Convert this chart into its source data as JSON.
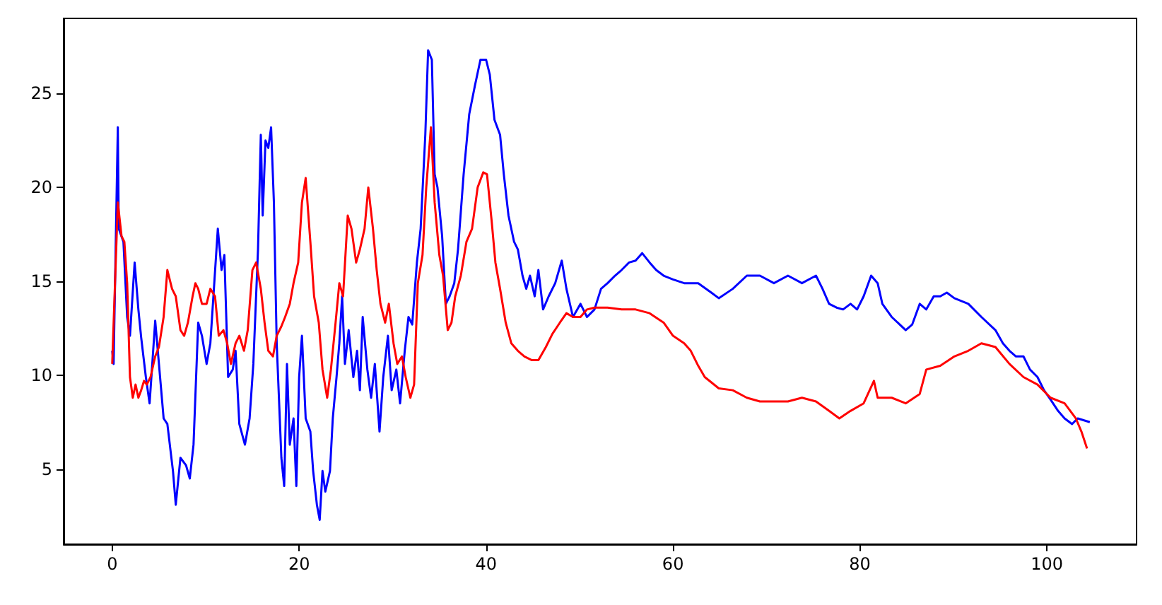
{
  "chart_data": {
    "type": "line",
    "xlim": [
      -5.2,
      109.6
    ],
    "ylim": [
      1.0,
      29.0
    ],
    "xticks": [
      0,
      20,
      40,
      60,
      80,
      100
    ],
    "yticks": [
      5,
      10,
      15,
      20,
      25
    ],
    "grid": false,
    "marker": "none",
    "line_style": "solid",
    "series": [
      {
        "color": "#0000ff",
        "x": [
          0,
          0.15,
          0.6,
          0.7,
          1.2,
          1.6,
          1.9,
          2.4,
          2.8,
          3.1,
          3.6,
          4.0,
          4.6,
          5.0,
          5.5,
          5.9,
          6.5,
          6.8,
          7.3,
          7.9,
          8.3,
          8.7,
          9.2,
          9.6,
          10.1,
          10.5,
          11.3,
          11.7,
          12.0,
          12.4,
          12.9,
          13.2,
          13.6,
          14.2,
          14.7,
          15.1,
          15.6,
          15.9,
          16.1,
          16.4,
          16.7,
          17.0,
          17.3,
          17.6,
          18.1,
          18.4,
          18.7,
          19.0,
          19.4,
          19.7,
          20.0,
          20.3,
          20.7,
          21.2,
          21.5,
          21.9,
          22.2,
          22.5,
          22.8,
          23.3,
          23.6,
          24.0,
          24.3,
          24.6,
          24.9,
          25.3,
          25.8,
          26.2,
          26.5,
          26.8,
          27.3,
          27.7,
          28.1,
          28.6,
          29.0,
          29.5,
          29.9,
          30.4,
          30.8,
          31.3,
          31.7,
          32.1,
          32.6,
          33.0,
          33.5,
          33.8,
          34.2,
          34.5,
          34.8,
          35.3,
          35.7,
          36.1,
          36.6,
          37.0,
          37.6,
          38.2,
          38.8,
          39.4,
          40.0,
          40.4,
          40.9,
          41.5,
          41.9,
          42.4,
          43.0,
          43.4,
          43.9,
          44.3,
          44.7,
          45.2,
          45.6,
          46.1,
          46.7,
          47.4,
          48.1,
          48.6,
          49.3,
          50.1,
          50.8,
          51.6,
          52.3,
          53.0,
          53.8,
          54.5,
          55.3,
          56.0,
          56.7,
          57.5,
          58.2,
          59.0,
          60,
          61.2,
          62.7,
          64.1,
          64.9,
          66.4,
          67.9,
          69.3,
          70.8,
          72.3,
          73.8,
          75.3,
          76.0,
          76.7,
          77.5,
          78.2,
          79.0,
          79.7,
          80.4,
          81.2,
          81.9,
          82.4,
          83.4,
          84.9,
          85.6,
          86.4,
          87.1,
          87.9,
          88.6,
          89.3,
          90.1,
          91.6,
          93.0,
          94.5,
          95.3,
          96.0,
          96.7,
          97.5,
          98.2,
          99.0,
          99.7,
          100.4,
          101.2,
          101.9,
          102.7,
          103.3,
          104.6
        ],
        "values": [
          11.3,
          10.6,
          23.2,
          17.8,
          17.1,
          13.1,
          12.1,
          16.0,
          13.5,
          12.0,
          9.9,
          8.5,
          12.9,
          10.6,
          7.7,
          7.4,
          4.9,
          3.1,
          5.6,
          5.2,
          4.5,
          6.3,
          12.8,
          12.1,
          10.6,
          11.7,
          17.8,
          15.6,
          16.4,
          9.9,
          10.3,
          11.3,
          7.4,
          6.3,
          7.7,
          10.6,
          16.7,
          22.8,
          18.5,
          22.5,
          22.1,
          23.2,
          19.2,
          11.7,
          5.6,
          4.1,
          10.6,
          6.3,
          7.7,
          4.1,
          9.9,
          12.1,
          7.7,
          7.0,
          4.9,
          3.1,
          2.3,
          4.9,
          3.8,
          4.9,
          7.7,
          9.9,
          11.7,
          14.2,
          10.6,
          12.4,
          9.9,
          11.3,
          9.2,
          13.1,
          10.3,
          8.8,
          10.6,
          7.0,
          9.9,
          12.1,
          9.2,
          10.3,
          8.5,
          11.3,
          13.1,
          12.7,
          16.0,
          17.8,
          22.8,
          27.3,
          26.8,
          20.7,
          20.0,
          17.4,
          13.8,
          14.2,
          14.9,
          16.7,
          20.7,
          23.9,
          25.4,
          26.8,
          26.8,
          26.0,
          23.6,
          22.8,
          20.7,
          18.5,
          17.1,
          16.7,
          15.3,
          14.6,
          15.3,
          14.2,
          15.6,
          13.5,
          14.2,
          14.9,
          16.1,
          14.6,
          13.1,
          13.8,
          13.1,
          13.5,
          14.6,
          14.9,
          15.3,
          15.6,
          16.0,
          16.1,
          16.5,
          16.0,
          15.6,
          15.3,
          15.1,
          14.9,
          14.9,
          14.4,
          14.1,
          14.6,
          15.3,
          15.3,
          14.9,
          15.3,
          14.9,
          15.3,
          14.6,
          13.8,
          13.6,
          13.5,
          13.8,
          13.5,
          14.2,
          15.3,
          14.9,
          13.8,
          13.1,
          12.4,
          12.7,
          13.8,
          13.5,
          14.2,
          14.2,
          14.4,
          14.1,
          13.8,
          13.1,
          12.4,
          11.7,
          11.3,
          11.0,
          11.0,
          10.3,
          9.9,
          9.2,
          8.7,
          8.1,
          7.7,
          7.4,
          7.7,
          7.5
        ]
      },
      {
        "color": "#ff0000",
        "x": [
          0,
          0.3,
          0.6,
          1.0,
          1.3,
          1.6,
          1.9,
          2.2,
          2.5,
          2.8,
          3.1,
          3.4,
          3.7,
          4.1,
          4.6,
          5.0,
          5.5,
          5.9,
          6.4,
          6.8,
          7.3,
          7.7,
          8.1,
          8.6,
          8.9,
          9.2,
          9.6,
          10.1,
          10.5,
          11.0,
          11.4,
          11.9,
          12.3,
          12.7,
          13.2,
          13.6,
          14.1,
          14.5,
          15.0,
          15.4,
          15.9,
          16.3,
          16.7,
          17.2,
          17.6,
          18.1,
          18.5,
          19.0,
          19.4,
          19.9,
          20.3,
          20.7,
          21.2,
          21.6,
          22.1,
          22.5,
          23.0,
          23.4,
          23.9,
          24.3,
          24.7,
          25.2,
          25.6,
          26.1,
          26.5,
          27.0,
          27.4,
          27.9,
          28.3,
          28.7,
          29.2,
          29.6,
          30.1,
          30.5,
          31.0,
          31.4,
          31.9,
          32.3,
          32.7,
          33.2,
          33.6,
          34.1,
          34.5,
          35.0,
          35.4,
          35.9,
          36.3,
          36.7,
          37.3,
          37.9,
          38.5,
          39.1,
          39.7,
          40.1,
          40.6,
          41.0,
          41.5,
          42.1,
          42.7,
          43.4,
          44.1,
          44.9,
          45.6,
          46.4,
          47.1,
          47.9,
          48.6,
          49.3,
          50.1,
          50.8,
          51.6,
          53.0,
          54.5,
          56.0,
          57.5,
          59.0,
          60.0,
          61.2,
          61.9,
          62.7,
          63.4,
          64.9,
          66.4,
          67.9,
          69.3,
          70.8,
          72.3,
          73.8,
          75.3,
          76.7,
          77.8,
          79.0,
          80.4,
          81.5,
          81.9,
          83.4,
          84.9,
          86.4,
          87.1,
          88.6,
          90.1,
          91.6,
          93.0,
          94.5,
          96.0,
          97.5,
          99.0,
          100.4,
          101.9,
          103.1,
          103.7,
          104.3
        ],
        "values": [
          10.6,
          14.9,
          19.2,
          17.4,
          17.1,
          14.9,
          9.9,
          8.8,
          9.5,
          8.8,
          9.2,
          9.7,
          9.5,
          9.9,
          11.0,
          11.5,
          13.1,
          15.6,
          14.6,
          14.2,
          12.4,
          12.1,
          12.8,
          14.2,
          14.9,
          14.6,
          13.8,
          13.8,
          14.6,
          14.2,
          12.1,
          12.4,
          11.7,
          10.6,
          11.7,
          12.1,
          11.3,
          12.4,
          15.6,
          16.0,
          14.6,
          12.8,
          11.3,
          11.0,
          12.1,
          12.6,
          13.1,
          13.8,
          14.9,
          16.0,
          19.2,
          20.5,
          17.1,
          14.2,
          12.8,
          10.3,
          8.8,
          10.3,
          12.8,
          14.9,
          14.2,
          18.5,
          17.8,
          16.0,
          16.7,
          17.8,
          20.0,
          17.8,
          15.6,
          13.8,
          12.8,
          13.8,
          11.7,
          10.6,
          11.0,
          9.9,
          8.8,
          9.5,
          14.9,
          16.4,
          20.0,
          23.2,
          19.2,
          16.4,
          15.3,
          12.4,
          12.8,
          14.2,
          15.3,
          17.1,
          17.8,
          20.0,
          20.8,
          20.7,
          18.2,
          16.0,
          14.6,
          12.8,
          11.7,
          11.3,
          11.0,
          10.8,
          10.8,
          11.5,
          12.2,
          12.8,
          13.3,
          13.1,
          13.1,
          13.5,
          13.6,
          13.6,
          13.5,
          13.5,
          13.3,
          12.8,
          12.1,
          11.7,
          11.3,
          10.5,
          9.9,
          9.3,
          9.2,
          8.8,
          8.6,
          8.6,
          8.6,
          8.8,
          8.6,
          8.1,
          7.7,
          8.1,
          8.5,
          9.7,
          8.8,
          8.8,
          8.5,
          9.0,
          10.3,
          10.5,
          11.0,
          11.3,
          11.7,
          11.5,
          10.6,
          9.9,
          9.5,
          8.8,
          8.5,
          7.7,
          7.0,
          6.1
        ]
      }
    ]
  }
}
